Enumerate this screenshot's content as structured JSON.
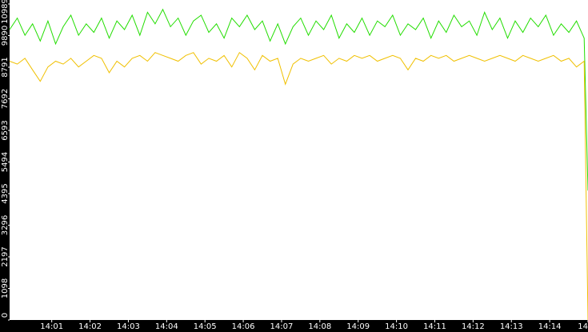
{
  "chart_data": {
    "type": "line",
    "x": [
      839.9,
      840.1,
      840.3,
      840.5,
      840.7,
      840.9,
      841.1,
      841.3,
      841.5,
      841.7,
      841.9,
      842.1,
      842.3,
      842.5,
      842.7,
      842.9,
      843.1,
      843.3,
      843.5,
      843.7,
      843.9,
      844.1,
      844.3,
      844.5,
      844.7,
      844.9,
      845.1,
      845.3,
      845.5,
      845.7,
      845.9,
      846.1,
      846.3,
      846.5,
      846.7,
      846.9,
      847.1,
      847.3,
      847.5,
      847.7,
      847.9,
      848.1,
      848.3,
      848.5,
      848.7,
      848.9,
      849.1,
      849.3,
      849.5,
      849.7,
      849.9,
      850.1,
      850.3,
      850.5,
      850.7,
      850.9,
      851.1,
      851.3,
      851.5,
      851.7,
      851.9,
      852.1,
      852.3,
      852.5,
      852.7,
      852.9,
      853.1,
      853.3,
      853.5,
      853.7,
      853.9,
      854.1,
      854.3,
      854.5,
      854.7,
      854.9,
      855.0
    ],
    "series": [
      {
        "color": "#22dd00",
        "values": [
          10100,
          10500,
          9900,
          10300,
          9700,
          10400,
          9600,
          10200,
          10600,
          9900,
          10300,
          10000,
          10500,
          9800,
          10400,
          10100,
          10600,
          9900,
          10700,
          10300,
          10800,
          10200,
          10500,
          9900,
          10400,
          10600,
          10000,
          10300,
          9800,
          10500,
          10200,
          10600,
          10100,
          10400,
          9700,
          10300,
          9600,
          10200,
          10500,
          9900,
          10400,
          10100,
          10600,
          9800,
          10300,
          10000,
          10500,
          9900,
          10400,
          10200,
          10600,
          9900,
          10300,
          10100,
          10500,
          9800,
          10400,
          10000,
          10600,
          10200,
          10400,
          9900,
          10700,
          10100,
          10500,
          9800,
          10400,
          10000,
          10500,
          10200,
          10600,
          9900,
          10300,
          10000,
          10400,
          9800,
          4500
        ]
      },
      {
        "color": "#f0c000",
        "values": [
          9000,
          8900,
          9100,
          8700,
          8300,
          8800,
          9000,
          8900,
          9100,
          8800,
          9000,
          9200,
          9100,
          8600,
          9000,
          8800,
          9100,
          9200,
          9000,
          9300,
          9200,
          9100,
          9000,
          9200,
          9300,
          8900,
          9100,
          9000,
          9200,
          8800,
          9300,
          9100,
          8700,
          9200,
          9000,
          9100,
          8200,
          8900,
          9100,
          9000,
          9100,
          9200,
          8900,
          9100,
          9000,
          9200,
          9100,
          9200,
          9000,
          9100,
          9200,
          9100,
          8700,
          9100,
          9000,
          9200,
          9100,
          9200,
          9000,
          9100,
          9200,
          9100,
          9000,
          9100,
          9200,
          9100,
          9000,
          9200,
          9100,
          9000,
          9100,
          9200,
          9000,
          9100,
          8800,
          9000,
          0
        ]
      }
    ],
    "xlim": [
      839.9,
      855.0
    ],
    "xticks": [
      {
        "value": 841,
        "label": "14:01"
      },
      {
        "value": 842,
        "label": "14:02"
      },
      {
        "value": 843,
        "label": "14:03"
      },
      {
        "value": 844,
        "label": "14:04"
      },
      {
        "value": 845,
        "label": "14:05"
      },
      {
        "value": 846,
        "label": "14:06"
      },
      {
        "value": 847,
        "label": "14:07"
      },
      {
        "value": 848,
        "label": "14:08"
      },
      {
        "value": 849,
        "label": "14:09"
      },
      {
        "value": 850,
        "label": "14:10"
      },
      {
        "value": 851,
        "label": "14:11"
      },
      {
        "value": 852,
        "label": "14:12"
      },
      {
        "value": 853,
        "label": "14:13"
      },
      {
        "value": 854,
        "label": "14:14"
      },
      {
        "value": 855,
        "label": "14"
      }
    ],
    "ylim": [
      0,
      10989
    ],
    "yticks": [
      0,
      1098,
      2197,
      3296,
      4395,
      5494,
      6593,
      7692,
      8791,
      9890,
      10989
    ]
  }
}
